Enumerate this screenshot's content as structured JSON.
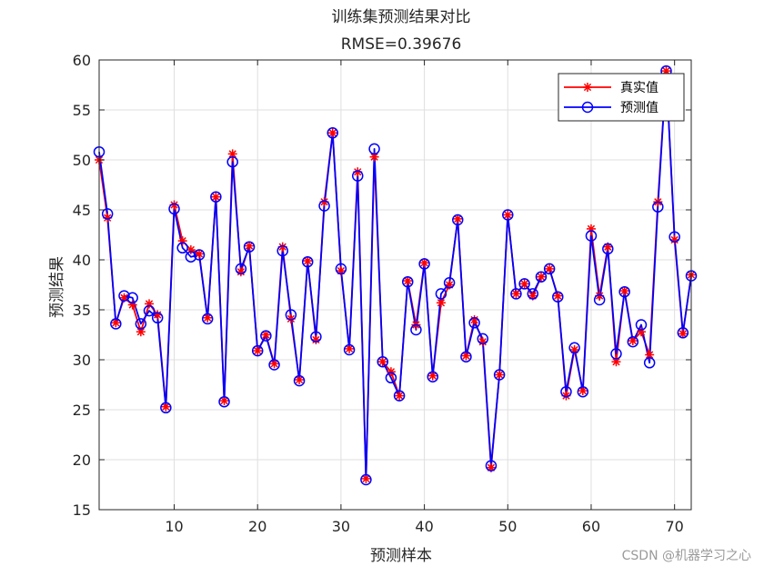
{
  "chart_data": {
    "type": "line",
    "title": "训练集预测结果对比",
    "subtitle": "RMSE=0.39676",
    "xlabel": "预测样本",
    "ylabel": "预测结果",
    "xlim": [
      1,
      72
    ],
    "ylim": [
      15,
      60
    ],
    "xticks": [
      10,
      20,
      30,
      40,
      50,
      60,
      70
    ],
    "yticks": [
      15,
      20,
      25,
      30,
      35,
      40,
      45,
      50,
      55,
      60
    ],
    "grid": true,
    "legend_position": "top-right",
    "series": [
      {
        "name": "真实值",
        "color": "#ff0000",
        "marker": "asterisk",
        "values": [
          50.0,
          44.2,
          33.7,
          36.2,
          35.5,
          32.8,
          35.6,
          34.5,
          25.3,
          45.5,
          41.9,
          41.0,
          40.6,
          34.2,
          46.3,
          25.9,
          50.6,
          38.8,
          41.4,
          30.9,
          32.5,
          29.6,
          41.3,
          34.1,
          28.0,
          39.9,
          32.0,
          45.8,
          52.7,
          38.9,
          31.1,
          48.8,
          18.1,
          50.3,
          29.8,
          28.8,
          26.4,
          37.9,
          33.5,
          39.7,
          28.4,
          35.7,
          37.5,
          44.1,
          30.4,
          34.0,
          31.8,
          19.2,
          28.5,
          44.5,
          36.6,
          37.6,
          36.4,
          38.3,
          39.1,
          36.4,
          26.4,
          31.0,
          26.9,
          43.1,
          36.4,
          41.3,
          29.8,
          36.9,
          31.9,
          32.8,
          30.5,
          45.8,
          58.9,
          42.0,
          32.6,
          38.5
        ]
      },
      {
        "name": "预测值",
        "color": "#0000ff",
        "marker": "circle",
        "values": [
          50.8,
          44.6,
          33.6,
          36.4,
          36.2,
          33.6,
          34.9,
          34.2,
          25.2,
          45.1,
          41.2,
          40.3,
          40.5,
          34.1,
          46.3,
          25.8,
          49.8,
          39.1,
          41.3,
          30.9,
          32.4,
          29.5,
          40.9,
          34.5,
          27.9,
          39.8,
          32.3,
          45.4,
          52.7,
          39.1,
          31.0,
          48.4,
          18.0,
          51.1,
          29.8,
          28.2,
          26.4,
          37.8,
          33.0,
          39.6,
          28.3,
          36.6,
          37.7,
          44.0,
          30.3,
          33.7,
          32.1,
          19.4,
          28.5,
          44.5,
          36.6,
          37.6,
          36.6,
          38.3,
          39.1,
          36.3,
          26.8,
          31.2,
          26.8,
          42.4,
          36.0,
          41.1,
          30.6,
          36.8,
          31.8,
          33.5,
          29.7,
          45.3,
          58.9,
          42.3,
          32.7,
          38.4
        ]
      }
    ]
  },
  "watermark": "CSDN @机器学习之心"
}
